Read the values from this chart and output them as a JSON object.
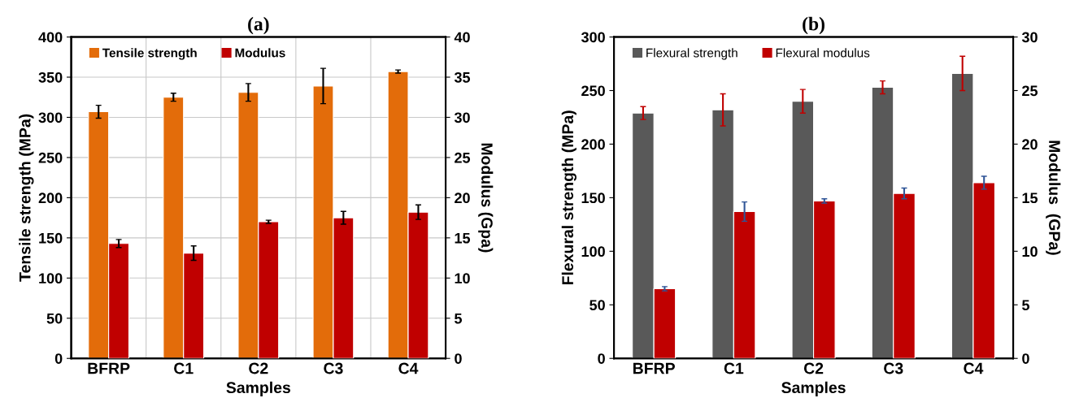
{
  "chart_data": [
    {
      "type": "bar",
      "title": "(a)",
      "xlabel": "Samples",
      "ylabel": "Tensile strength (MPa)",
      "y2label": "Modulus (Gpa)",
      "categories": [
        "BFRP",
        "C1",
        "C2",
        "C3",
        "C4"
      ],
      "series": [
        {
          "name": "Tensile strength",
          "color": "#e36c0a",
          "values": [
            307,
            325,
            331,
            339,
            357
          ],
          "errors": [
            8,
            5,
            11,
            22,
            2
          ]
        },
        {
          "name": "Modulus",
          "color": "#c00000",
          "axis": "y2",
          "values": [
            14.3,
            13.1,
            17.0,
            17.5,
            18.2
          ],
          "errors": [
            0.5,
            0.9,
            0.2,
            0.8,
            0.9
          ]
        }
      ],
      "ylim": [
        0,
        400
      ],
      "yticks": [
        0,
        50,
        100,
        150,
        200,
        250,
        300,
        350,
        400
      ],
      "y2lim": [
        0,
        40
      ],
      "y2ticks": [
        0,
        5,
        10,
        15,
        20,
        25,
        30,
        35,
        40
      ],
      "grid": true,
      "legend": "top left"
    },
    {
      "type": "bar",
      "title": "(b)",
      "xlabel": "Samples",
      "ylabel": "Flexural strength (MPa)",
      "y2label": "Modulus  (GPa)",
      "categories": [
        "BFRP",
        "C1",
        "C2",
        "C3",
        "C4"
      ],
      "series": [
        {
          "name": "Flexural strength",
          "color": "#595959",
          "values": [
            229,
            232,
            240,
            253,
            266
          ],
          "errors": [
            6,
            15,
            11,
            6,
            16
          ]
        },
        {
          "name": "Flexural modulus",
          "color": "#c00000",
          "axis": "y2",
          "values": [
            6.5,
            13.7,
            14.7,
            15.4,
            16.4
          ],
          "errors": [
            0.2,
            0.9,
            0.2,
            0.5,
            0.6
          ]
        }
      ],
      "ylim": [
        0,
        300
      ],
      "yticks": [
        0,
        50,
        100,
        150,
        200,
        250,
        300
      ],
      "y2lim": [
        0,
        30
      ],
      "y2ticks": [
        0,
        5,
        10,
        15,
        20,
        25,
        30
      ],
      "grid": false,
      "legend": "top left"
    }
  ]
}
